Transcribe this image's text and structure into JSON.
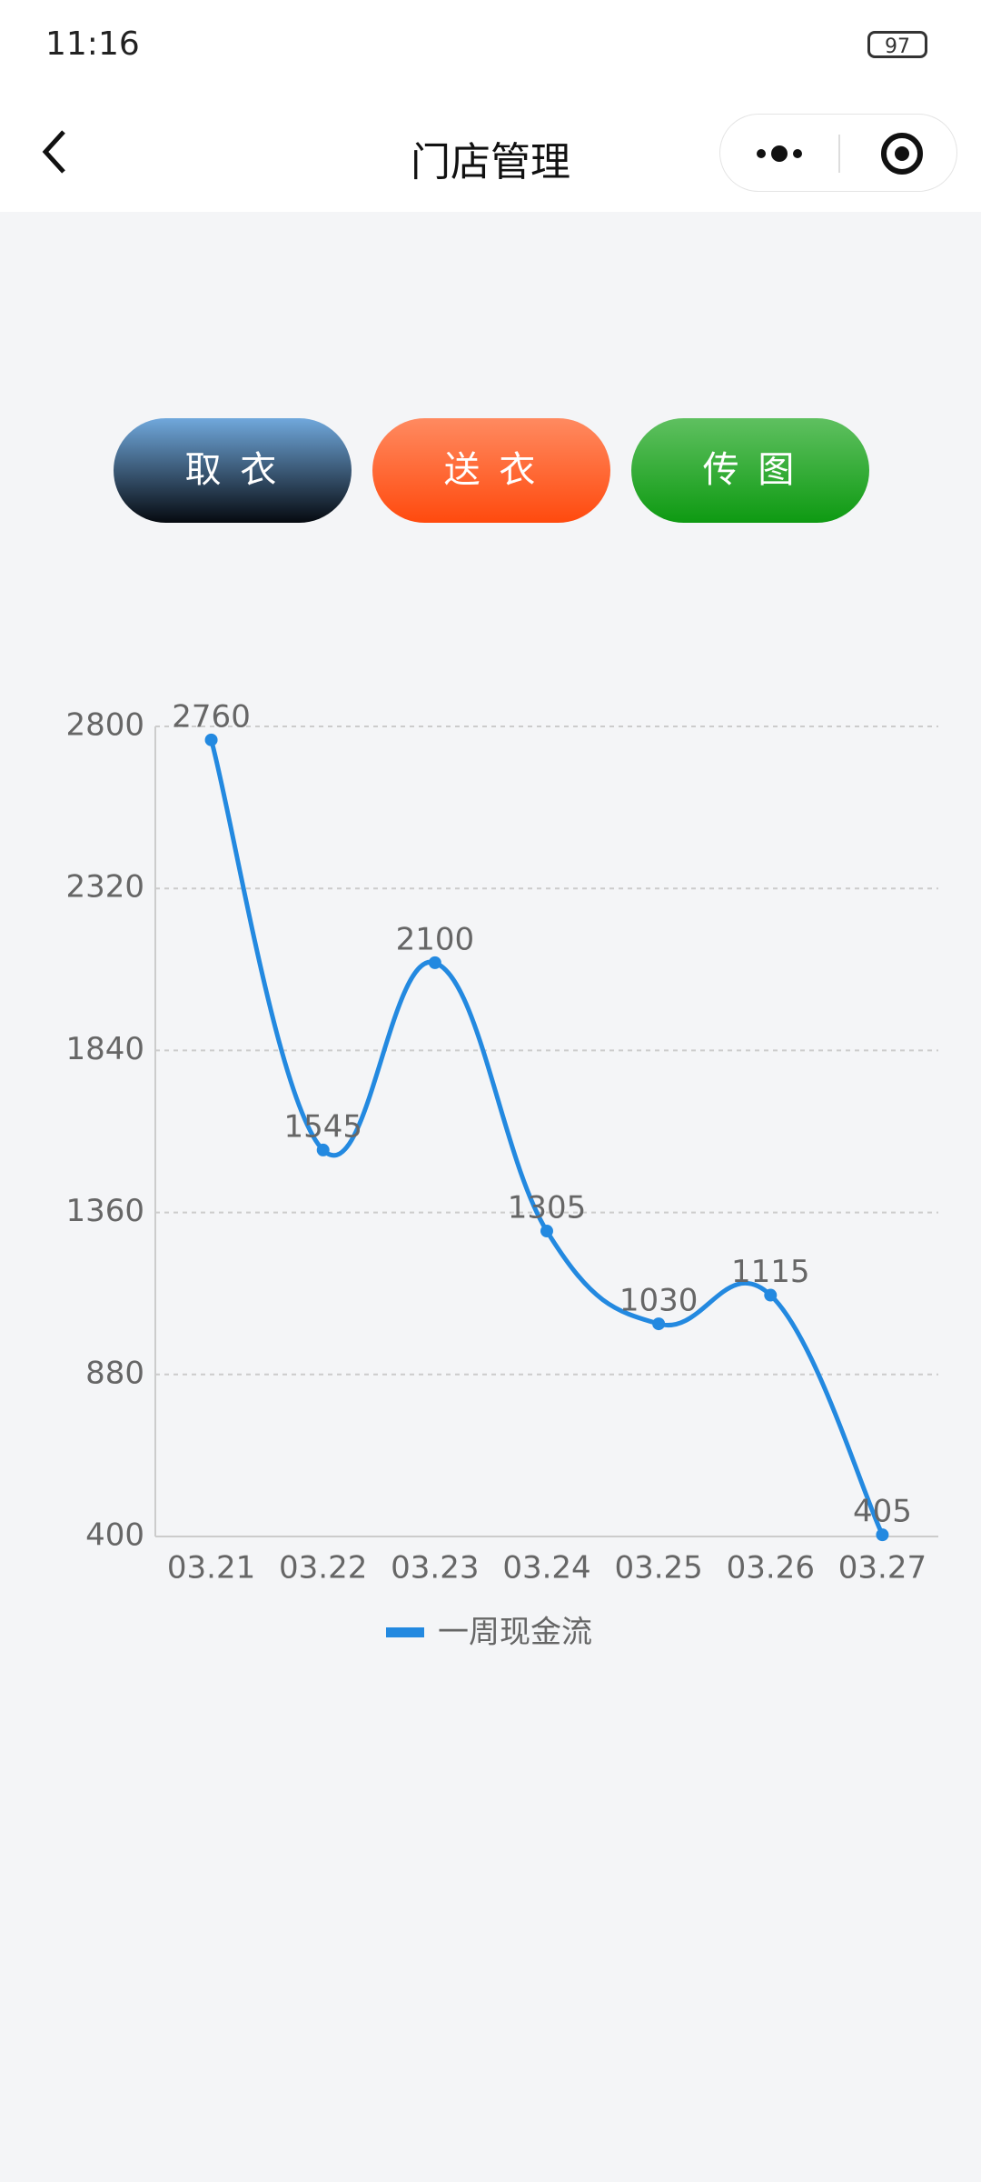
{
  "status_bar": {
    "time": "11:16",
    "battery": "97"
  },
  "nav_bar": {
    "title": "门店管理"
  },
  "buttons": [
    "取 衣",
    "送 衣",
    "传 图"
  ],
  "chart_data": {
    "type": "line",
    "categories": [
      "03.21",
      "03.22",
      "03.23",
      "03.24",
      "03.25",
      "03.26",
      "03.27"
    ],
    "series": [
      {
        "name": "一周现金流",
        "color": "#2389e0",
        "values": [
          2760,
          1545,
          2100,
          1305,
          1030,
          1115,
          405
        ]
      }
    ],
    "ylim": [
      400,
      2800
    ],
    "yticks": [
      400,
      880,
      1360,
      1840,
      2320,
      2800
    ],
    "grid": true,
    "smooth": true,
    "legend": "bottom"
  }
}
